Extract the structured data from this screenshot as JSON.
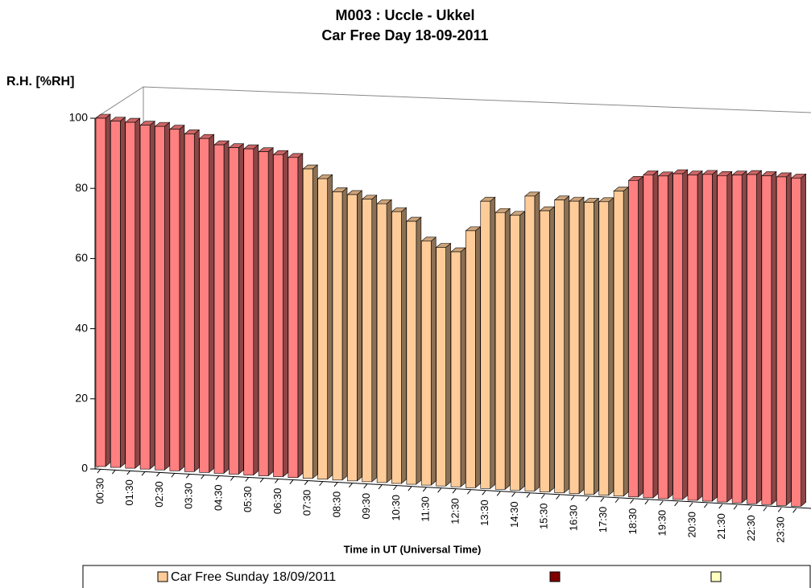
{
  "chart_data": {
    "type": "bar3d",
    "title": "M003 : Uccle - Ukkel",
    "subtitle": "Car Free Day 18-09-2011",
    "y_label": "R.H.  [%RH]",
    "x_label": "Time in UT (Universal Time)",
    "categories": [
      "00:30",
      null,
      "01:30",
      null,
      "02:30",
      null,
      "03:30",
      null,
      "04:30",
      null,
      "05:30",
      null,
      "06:30",
      null,
      "07:30",
      null,
      "08:30",
      null,
      "09:30",
      null,
      "10:30",
      null,
      "11:30",
      null,
      "12:30",
      null,
      "13:30",
      null,
      "14:30",
      null,
      "15:30",
      null,
      "16:30",
      null,
      "17:30",
      null,
      "18:30",
      null,
      "19:30",
      null,
      "20:30",
      null,
      "21:30",
      null,
      "22:30",
      null,
      "23:30",
      null
    ],
    "values": [
      100,
      99.5,
      99.5,
      99,
      99,
      98.5,
      97.5,
      96.5,
      95,
      94.5,
      94.5,
      94,
      93.5,
      93,
      90,
      87.5,
      84,
      83.5,
      82.5,
      81.5,
      79.5,
      77,
      71.5,
      70,
      69,
      75.5,
      84.5,
      81.5,
      81,
      87,
      83,
      86.5,
      86.5,
      86.5,
      87,
      90.5,
      94,
      96,
      96,
      97,
      97,
      97.5,
      97.5,
      98,
      98.5,
      98.5,
      98.5,
      98.5
    ],
    "bar_colors": [
      "#ff8080",
      "#ff8080",
      "#ff8080",
      "#ff8080",
      "#ff8080",
      "#ff8080",
      "#ff8080",
      "#ff8080",
      "#ff8080",
      "#ff8080",
      "#ff8080",
      "#ff8080",
      "#ff8080",
      "#ff8080",
      "#ffcc99",
      "#ffcc99",
      "#ffcc99",
      "#ffcc99",
      "#ffcc99",
      "#ffcc99",
      "#ffcc99",
      "#ffcc99",
      "#ffcc99",
      "#ffcc99",
      "#ffcc99",
      "#ffcc99",
      "#ffcc99",
      "#ffcc99",
      "#ffcc99",
      "#ffcc99",
      "#ffcc99",
      "#ffcc99",
      "#ffcc99",
      "#ffcc99",
      "#ffcc99",
      "#ffcc99",
      "#ff8080",
      "#ff8080",
      "#ff8080",
      "#ff8080",
      "#ff8080",
      "#ff8080",
      "#ff8080",
      "#ff8080",
      "#ff8080",
      "#ff8080",
      "#ff8080",
      "#ff8080"
    ],
    "ylim": [
      0,
      100
    ],
    "yticks": [
      0,
      20,
      40,
      60,
      80,
      100
    ],
    "legend": [
      {
        "label": "Car Free Sunday 18/09/2011",
        "color": "#ffcc99"
      },
      {
        "color": "#800000"
      },
      {
        "color": "#ffffc0"
      }
    ]
  }
}
